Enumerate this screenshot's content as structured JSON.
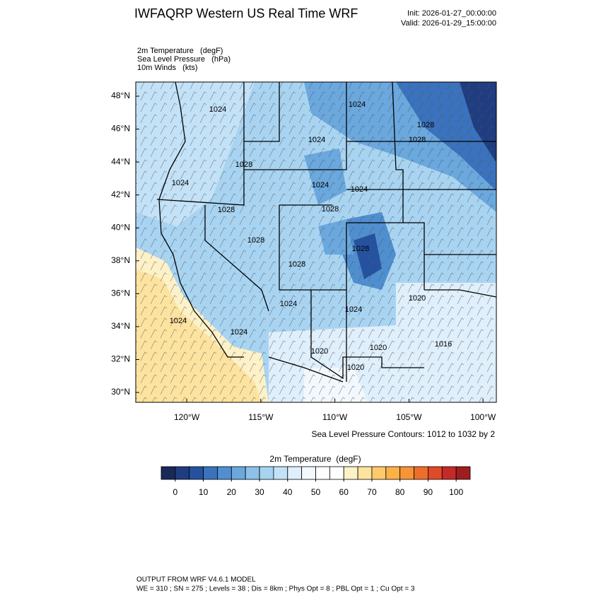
{
  "header": {
    "title": "IWFAQRP Western US Real Time WRF",
    "init": "Init: 2026-01-27_00:00:00",
    "valid": "Valid: 2026-01-29_15:00:00"
  },
  "fields": [
    "2m Temperature   (degF)",
    "Sea Level Pressure   (hPa)",
    "10m Winds   (kts)"
  ],
  "map": {
    "lat_lim": [
      29.4,
      48.86
    ],
    "lon_lim": [
      -123.44,
      -99.1
    ],
    "lat_ticks": [
      {
        "value": 30,
        "label": "30°N"
      },
      {
        "value": 32,
        "label": "32°N"
      },
      {
        "value": 34,
        "label": "34°N"
      },
      {
        "value": 36,
        "label": "36°N"
      },
      {
        "value": 38,
        "label": "38°N"
      },
      {
        "value": 40,
        "label": "40°N"
      },
      {
        "value": 42,
        "label": "42°N"
      },
      {
        "value": 44,
        "label": "44°N"
      },
      {
        "value": 46,
        "label": "46°N"
      },
      {
        "value": 48,
        "label": "48°N"
      }
    ],
    "lon_ticks": [
      {
        "value": -120,
        "label": "120°W"
      },
      {
        "value": -115,
        "label": "115°W"
      },
      {
        "value": -110,
        "label": "110°W"
      },
      {
        "value": -105,
        "label": "105°W"
      },
      {
        "value": -100,
        "label": "100°W"
      }
    ],
    "contour_labels": [
      "1024",
      "1024",
      "1028",
      "1028",
      "1024",
      "1028",
      "1024",
      "1024",
      "1024",
      "1028",
      "1028",
      "1028",
      "1028",
      "1028",
      "1024",
      "1020",
      "1024",
      "1024",
      "1024",
      "1016",
      "1020",
      "1020",
      "1020"
    ],
    "contour_note": "Sea Level Pressure Contours: 1012 to 1032 by 2"
  },
  "colorbar": {
    "title": "2m Temperature  (degF)",
    "lim": [
      -5,
      105
    ],
    "colors": [
      "#18295a",
      "#1f3d80",
      "#2552a0",
      "#3a72bd",
      "#4f8fd0",
      "#6aa8de",
      "#8cc2ea",
      "#a8d4f2",
      "#c3e2f7",
      "#dfeffb",
      "#f2f8fd",
      "#ffffff",
      "#ffffff",
      "#fdf1c8",
      "#fde3a0",
      "#fdca6a",
      "#fcb146",
      "#f89438",
      "#ef6d2c",
      "#df4a28",
      "#c42a26",
      "#9e1d20"
    ],
    "ticks": [
      0,
      10,
      20,
      30,
      40,
      50,
      60,
      70,
      80,
      90,
      100
    ]
  },
  "footer": [
    "OUTPUT FROM WRF V4.6.1 MODEL",
    "WE = 310 ; SN = 275 ; Levels = 38 ; Dis = 8km ; Phys Opt = 8 ; PBL Opt = 1 ; Cu Opt = 3"
  ]
}
